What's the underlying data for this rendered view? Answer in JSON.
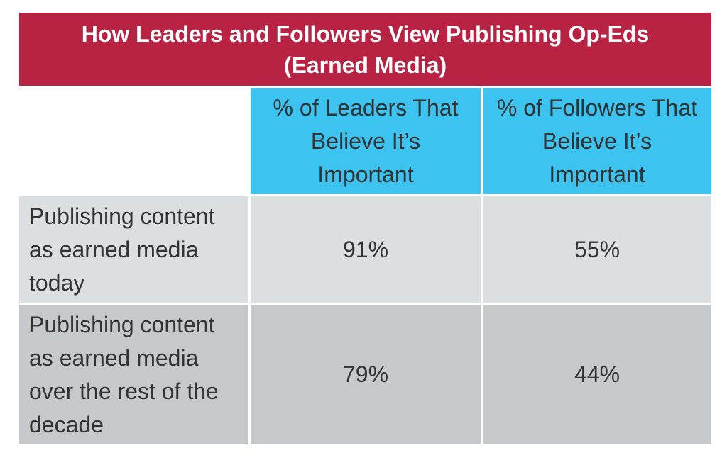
{
  "chart_data": {
    "type": "table",
    "title_lines": [
      "How Leaders and Followers View Publishing Op-Eds",
      "(Earned Media)"
    ],
    "columns": [
      "% of Leaders That Believe It’s Important",
      "% of Followers That Believe It’s Important"
    ],
    "rows": [
      {
        "label": "Publishing content as earned media today",
        "values": [
          "91%",
          "55%"
        ]
      },
      {
        "label": "Publishing content as earned media over the rest of the decade",
        "values": [
          "79%",
          "44%"
        ]
      }
    ],
    "numeric_values": [
      [
        91,
        55
      ],
      [
        79,
        44
      ]
    ]
  },
  "colors": {
    "title_background": "#b82344",
    "header_background": "#3cc3ef",
    "row_1_background": "#dcdfe2",
    "row_2_background": "#c6c9cc",
    "text": "#333333"
  }
}
